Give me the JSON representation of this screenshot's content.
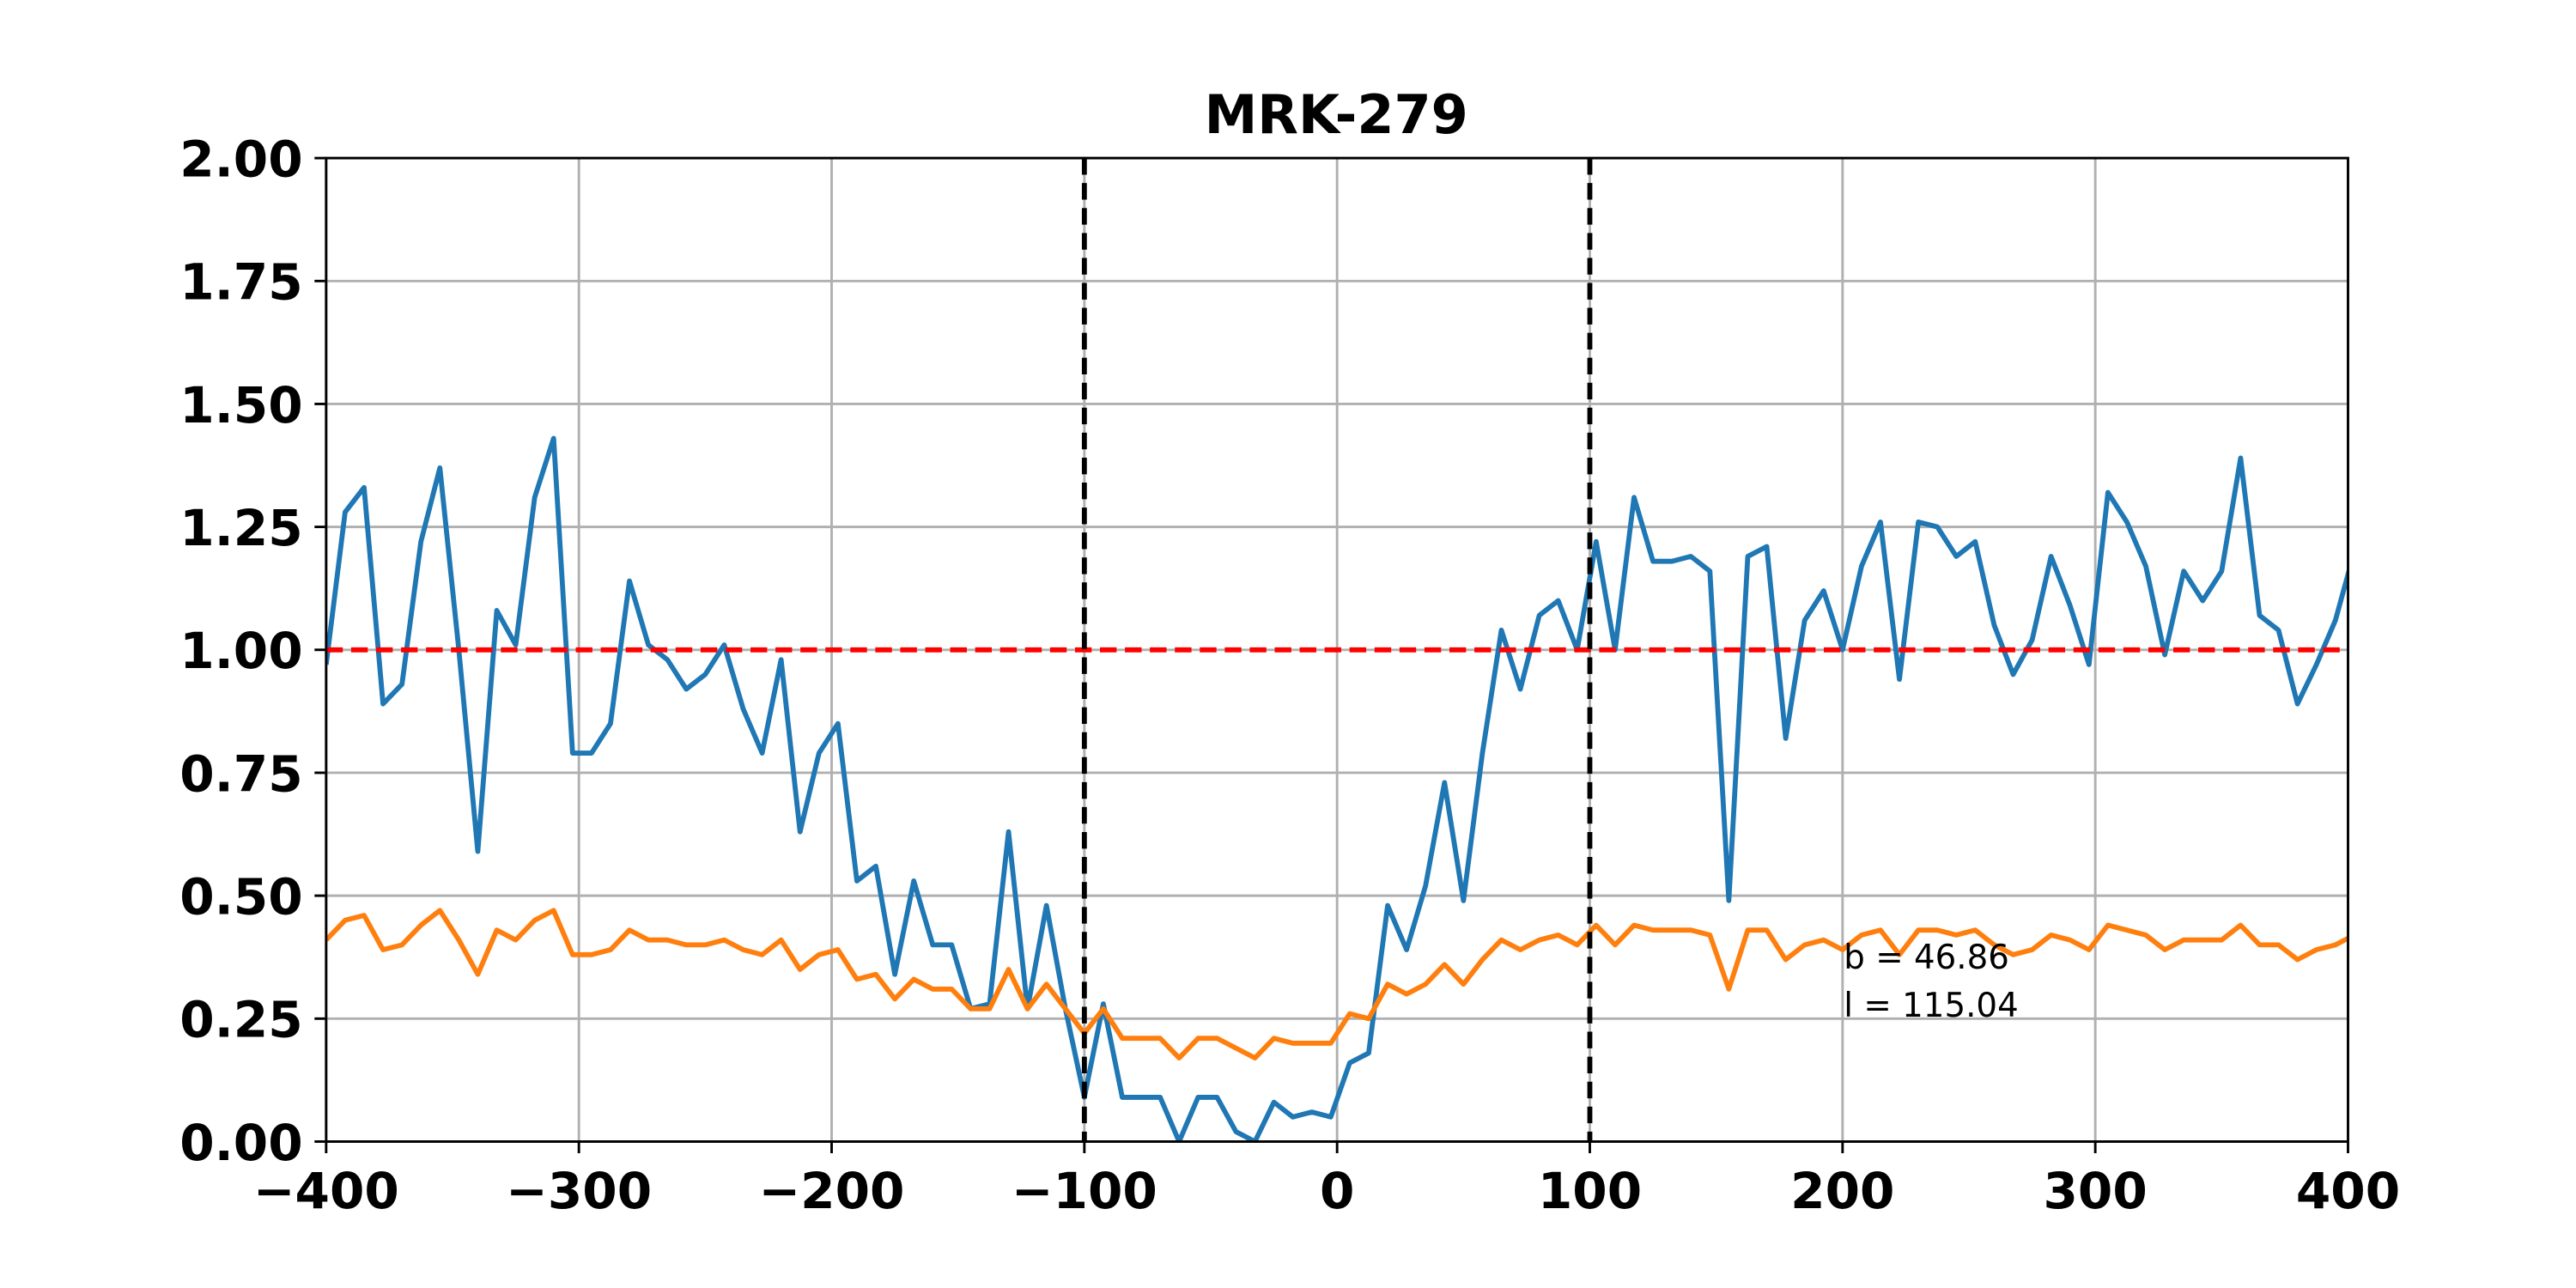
{
  "chart_data": {
    "type": "line",
    "title": "MRK-279",
    "x": [
      -400,
      -392.5,
      -385,
      -377.5,
      -370,
      -362.5,
      -355,
      -347.5,
      -340,
      -332.5,
      -325,
      -317.5,
      -310,
      -302.5,
      -295,
      -287.5,
      -280,
      -272.5,
      -265,
      -257.5,
      -250,
      -242.5,
      -235,
      -227.5,
      -220,
      -212.5,
      -205,
      -197.5,
      -190,
      -182.5,
      -175,
      -167.5,
      -160,
      -152.5,
      -145,
      -137.5,
      -130,
      -122.5,
      -115,
      -107.5,
      -100,
      -92.5,
      -85,
      -77.5,
      -70,
      -62.5,
      -55,
      -47.5,
      -40,
      -32.5,
      -25,
      -17.5,
      -10,
      -2.5,
      5,
      12.5,
      20,
      27.5,
      35,
      42.5,
      50,
      57.5,
      65,
      72.5,
      80,
      87.5,
      95,
      102.5,
      110,
      117.5,
      125,
      132.5,
      140,
      147.5,
      155,
      162.5,
      170,
      177.5,
      185,
      192.5,
      200,
      207.5,
      215,
      222.5,
      230,
      237.5,
      245,
      252.5,
      260,
      267.5,
      275,
      282.5,
      290,
      297.5,
      305,
      312.5,
      320,
      327.5,
      335,
      342.5,
      350,
      357.5,
      365,
      372.5,
      380,
      387.5,
      395,
      402.5
    ],
    "series": [
      {
        "color": "#1f77b4",
        "values": [
          0.97,
          1.28,
          1.33,
          0.89,
          0.93,
          1.22,
          1.37,
          1.0,
          0.59,
          1.08,
          1.01,
          1.31,
          1.43,
          0.79,
          0.79,
          0.85,
          1.14,
          1.01,
          0.98,
          0.92,
          0.95,
          1.01,
          0.88,
          0.79,
          0.98,
          0.63,
          0.79,
          0.85,
          0.53,
          0.56,
          0.34,
          0.53,
          0.4,
          0.4,
          0.27,
          0.28,
          0.63,
          0.27,
          0.48,
          0.27,
          0.09,
          0.28,
          0.09,
          0.09,
          0.09,
          0.0,
          0.09,
          0.09,
          0.02,
          0.0,
          0.08,
          0.05,
          0.06,
          0.05,
          0.16,
          0.18,
          0.48,
          0.39,
          0.52,
          0.73,
          0.49,
          0.79,
          1.04,
          0.92,
          1.07,
          1.1,
          1.0,
          1.22,
          1.0,
          1.31,
          1.18,
          1.18,
          1.19,
          1.16,
          0.49,
          1.19,
          1.21,
          0.82,
          1.06,
          1.12,
          1.0,
          1.17,
          1.26,
          0.94,
          1.26,
          1.25,
          1.19,
          1.22,
          1.05,
          0.95,
          1.02,
          1.19,
          1.09,
          0.97,
          1.32,
          1.26,
          1.17,
          0.99,
          1.16,
          1.1,
          1.16,
          1.39,
          1.07,
          1.04,
          0.89,
          0.97,
          1.06,
          1.2
        ]
      },
      {
        "color": "#ff7f0e",
        "values": [
          0.41,
          0.45,
          0.46,
          0.39,
          0.4,
          0.44,
          0.47,
          0.41,
          0.34,
          0.43,
          0.41,
          0.45,
          0.47,
          0.38,
          0.38,
          0.39,
          0.43,
          0.41,
          0.41,
          0.4,
          0.4,
          0.41,
          0.39,
          0.38,
          0.41,
          0.35,
          0.38,
          0.39,
          0.33,
          0.34,
          0.29,
          0.33,
          0.31,
          0.31,
          0.27,
          0.27,
          0.35,
          0.27,
          0.32,
          0.27,
          0.22,
          0.27,
          0.21,
          0.21,
          0.21,
          0.17,
          0.21,
          0.21,
          0.19,
          0.17,
          0.21,
          0.2,
          0.2,
          0.2,
          0.26,
          0.25,
          0.32,
          0.3,
          0.32,
          0.36,
          0.32,
          0.37,
          0.41,
          0.39,
          0.41,
          0.42,
          0.4,
          0.44,
          0.4,
          0.44,
          0.43,
          0.43,
          0.43,
          0.42,
          0.31,
          0.43,
          0.43,
          0.37,
          0.4,
          0.41,
          0.39,
          0.42,
          0.43,
          0.38,
          0.43,
          0.43,
          0.42,
          0.43,
          0.4,
          0.38,
          0.39,
          0.42,
          0.41,
          0.39,
          0.44,
          0.43,
          0.42,
          0.39,
          0.41,
          0.41,
          0.41,
          0.44,
          0.4,
          0.4,
          0.37,
          0.39,
          0.4,
          0.42
        ]
      }
    ],
    "vlines": [
      {
        "value": -100,
        "color": "#000000"
      },
      {
        "value": 100,
        "color": "#000000"
      }
    ],
    "hlines": [
      {
        "value": 1,
        "color": "#ff0000"
      }
    ],
    "annotations": [
      "b = 46.86",
      "l = 115.04"
    ],
    "xlim": [
      -400,
      400
    ],
    "xticks": [
      {
        "value": -400,
        "label": "−400"
      },
      {
        "value": -300,
        "label": "−300"
      },
      {
        "value": -200,
        "label": "−200"
      },
      {
        "value": -100,
        "label": "−100"
      },
      0,
      100,
      200,
      300,
      400
    ],
    "ylim": [
      0,
      2
    ],
    "yticks": [
      {
        "value": 0,
        "label": "0.00"
      },
      {
        "value": 0.25,
        "label": "0.25"
      },
      {
        "value": 0.5,
        "label": "0.50"
      },
      {
        "value": 0.75,
        "label": "0.75"
      },
      {
        "value": 1,
        "label": "1.00"
      },
      {
        "value": 1.25,
        "label": "1.25"
      },
      {
        "value": 1.5,
        "label": "1.50"
      },
      {
        "value": 1.75,
        "label": "1.75"
      },
      {
        "value": 2,
        "label": "2.00"
      }
    ],
    "grid": true
  }
}
